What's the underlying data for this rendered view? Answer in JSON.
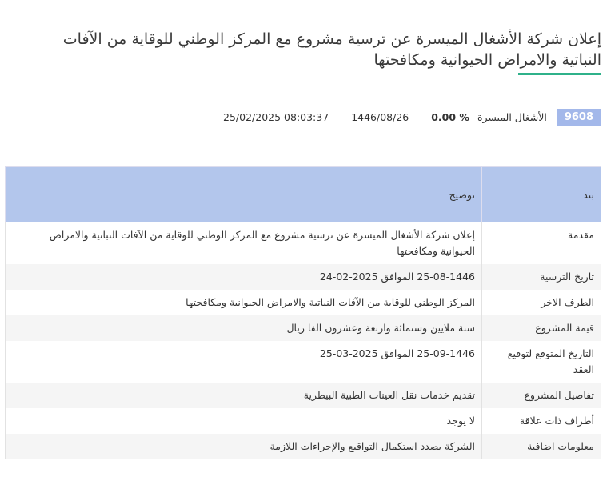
{
  "header": {
    "title": "إعلان شركة الأشغال الميسرة عن ترسية مشروع مع المركز الوطني للوقاية من الآفات النباتية والامراض الحيوانية ومكافحتها"
  },
  "meta": {
    "symbol": "9608",
    "company": "الأشغال الميسرة",
    "change": "0.00 %",
    "hijri_date": "1446/08/26",
    "datetime": "25/02/2025 08:03:37"
  },
  "colors": {
    "badge": "#a3b8ea",
    "accent": "#2fb18a",
    "table_header": "#b3c6ec"
  },
  "table": {
    "headers": [
      "بند",
      "توضيح"
    ],
    "rows": [
      {
        "key": "مقدمة",
        "value": "إعلان شركة الأشغال الميسرة عن ترسية مشروع مع المركز الوطني للوقاية من الآفات النباتية والامراض الحيوانية ومكافحتها"
      },
      {
        "key": "تاريخ الترسية",
        "value": "25-08-1446 الموافق 2025-02-24"
      },
      {
        "key": "الطرف الاخر",
        "value": "المركز الوطني للوقاية من الآفات النباتية والامراض الحيوانية ومكافحتها"
      },
      {
        "key": "قيمة المشروع",
        "value": "ستة ملايين وستمائة واربعة وعشرون الفا ريال"
      },
      {
        "key": "التاريخ المتوقع لتوقيع العقد",
        "value": "25-09-1446 الموافق 2025-03-25"
      },
      {
        "key": "تفاصيل المشروع",
        "value": "تقديم خدمات نقل العينات الطبية البيطرية"
      },
      {
        "key": "أطراف ذات علاقة",
        "value": "لا يوجد"
      },
      {
        "key": "معلومات اضافية",
        "value": "الشركة بصدد استكمال التواقيع والإجراءات اللازمة"
      }
    ]
  }
}
